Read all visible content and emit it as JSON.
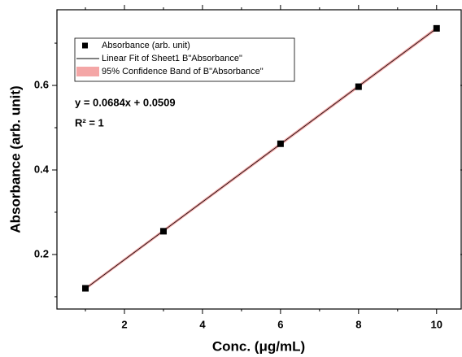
{
  "chart_data": {
    "type": "scatter",
    "x_label": "Conc. (μg/mL)",
    "y_label": "Absorbance (arb. unit)",
    "xlim": [
      0.27,
      10.63
    ],
    "ylim": [
      0.071,
      0.779
    ],
    "xticks": [
      2,
      4,
      6,
      8,
      10
    ],
    "yticks": [
      0.2,
      0.4,
      0.6
    ],
    "xminorticks": [
      1,
      3,
      5,
      7,
      9
    ],
    "yminorticks": [
      0.1,
      0.3,
      0.5,
      0.7
    ],
    "legend": "upper left",
    "series": [
      {
        "name": "Absorbance (arb. unit)",
        "kind": "points",
        "color": "#000000",
        "x": [
          1,
          3,
          6,
          8,
          10
        ],
        "values": [
          0.12,
          0.255,
          0.462,
          0.597,
          0.735
        ]
      },
      {
        "name": "Linear Fit of Sheet1 B\"Absorbance\"",
        "kind": "line",
        "color": "#000000",
        "x": [
          1,
          10
        ],
        "values": [
          0.1193,
          0.7349
        ]
      },
      {
        "name": "95% Confidence Band of B\"Absorbance\"",
        "kind": "band",
        "color": "#f4a6a6",
        "x": [
          1,
          10
        ],
        "lower": [
          0.1175,
          0.7325
        ],
        "upper": [
          0.1211,
          0.7373
        ]
      }
    ],
    "annotations": [
      "y = 0.0684x + 0.0509",
      "R² = 1"
    ]
  }
}
